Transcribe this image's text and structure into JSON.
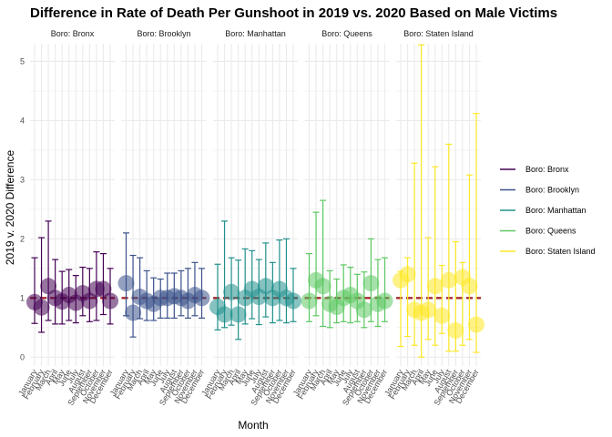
{
  "chart_data": {
    "type": "scatter",
    "title": "Difference in Rate of Death Per Gunshoot in 2019 vs. 2020 Based on Male Victims",
    "xlabel": "Month",
    "ylabel": "2019 v. 2020 Difference",
    "ylim": [
      -0.15,
      5.3
    ],
    "yticks": [
      0,
      1,
      2,
      3,
      4,
      5
    ],
    "reference_line": 1,
    "grid": true,
    "legend_position": "right",
    "months": [
      "January",
      "February",
      "March",
      "April",
      "May",
      "June",
      "July",
      "August",
      "September",
      "October",
      "November",
      "December"
    ],
    "panels": [
      {
        "strip": "Boro: Bronx",
        "legend": "Boro: Bronx",
        "color": "#440154",
        "values": [
          0.93,
          0.84,
          1.2,
          1.0,
          0.94,
          1.05,
          0.92,
          1.08,
          0.95,
          1.15,
          1.15,
          0.95
        ],
        "lower": [
          0.57,
          0.42,
          0.62,
          0.56,
          0.56,
          0.62,
          0.58,
          0.7,
          0.6,
          0.62,
          0.72,
          0.56
        ],
        "upper": [
          1.68,
          2.02,
          2.3,
          1.65,
          1.45,
          1.48,
          1.38,
          1.52,
          1.5,
          1.78,
          1.75,
          1.5
        ]
      },
      {
        "strip": "Boro: Brooklyn",
        "legend": "Boro: Brooklyn",
        "color": "#3B528B",
        "values": [
          1.25,
          0.75,
          1.02,
          0.95,
          0.9,
          1.0,
          1.0,
          1.03,
          1.0,
          0.95,
          1.05,
          1.0
        ],
        "lower": [
          0.7,
          0.34,
          0.65,
          0.62,
          0.62,
          0.66,
          0.66,
          0.66,
          0.7,
          0.66,
          0.7,
          0.66
        ],
        "upper": [
          2.1,
          1.72,
          1.68,
          1.46,
          1.34,
          1.32,
          1.42,
          1.42,
          1.46,
          1.5,
          1.6,
          1.5
        ]
      },
      {
        "strip": "Boro: Manhattan",
        "legend": "Boro: Manhattan",
        "color": "#21908C",
        "values": [
          0.85,
          0.72,
          1.1,
          0.72,
          1.0,
          1.15,
          1.02,
          1.2,
          1.0,
          1.15,
          1.0,
          0.95
        ],
        "lower": [
          0.46,
          0.5,
          0.54,
          0.3,
          0.56,
          0.65,
          0.55,
          0.68,
          0.58,
          0.62,
          0.58,
          0.6
        ],
        "upper": [
          1.57,
          2.3,
          1.68,
          1.64,
          1.83,
          1.8,
          1.65,
          1.93,
          1.6,
          1.98,
          2.0,
          1.5
        ]
      },
      {
        "strip": "Boro: Queens",
        "legend": "Boro: Queens",
        "color": "#5DC863",
        "values": [
          0.95,
          1.3,
          1.2,
          0.9,
          0.85,
          1.0,
          1.05,
          0.95,
          0.8,
          1.25,
          0.9,
          0.95
        ],
        "lower": [
          0.6,
          0.7,
          0.52,
          0.5,
          0.58,
          0.6,
          0.58,
          0.6,
          0.5,
          0.6,
          0.52,
          0.6
        ],
        "upper": [
          1.75,
          2.45,
          2.65,
          1.46,
          1.32,
          1.56,
          1.52,
          1.4,
          1.44,
          2.0,
          1.65,
          1.68
        ]
      },
      {
        "strip": "Boro: Staten Island",
        "legend": "Boro: Staten Island",
        "color": "#FDE725",
        "values": [
          1.3,
          1.4,
          0.8,
          0.75,
          0.8,
          1.2,
          0.7,
          1.3,
          0.45,
          1.35,
          1.2,
          0.55
        ],
        "lower": [
          0.18,
          0.35,
          0.2,
          0.0,
          0.3,
          0.2,
          0.4,
          0.1,
          0.1,
          0.2,
          0.3,
          0.08
        ],
        "upper": [
          1.45,
          1.68,
          3.28,
          5.28,
          2.02,
          3.22,
          1.55,
          3.6,
          1.95,
          1.6,
          3.08,
          4.12
        ]
      }
    ]
  }
}
